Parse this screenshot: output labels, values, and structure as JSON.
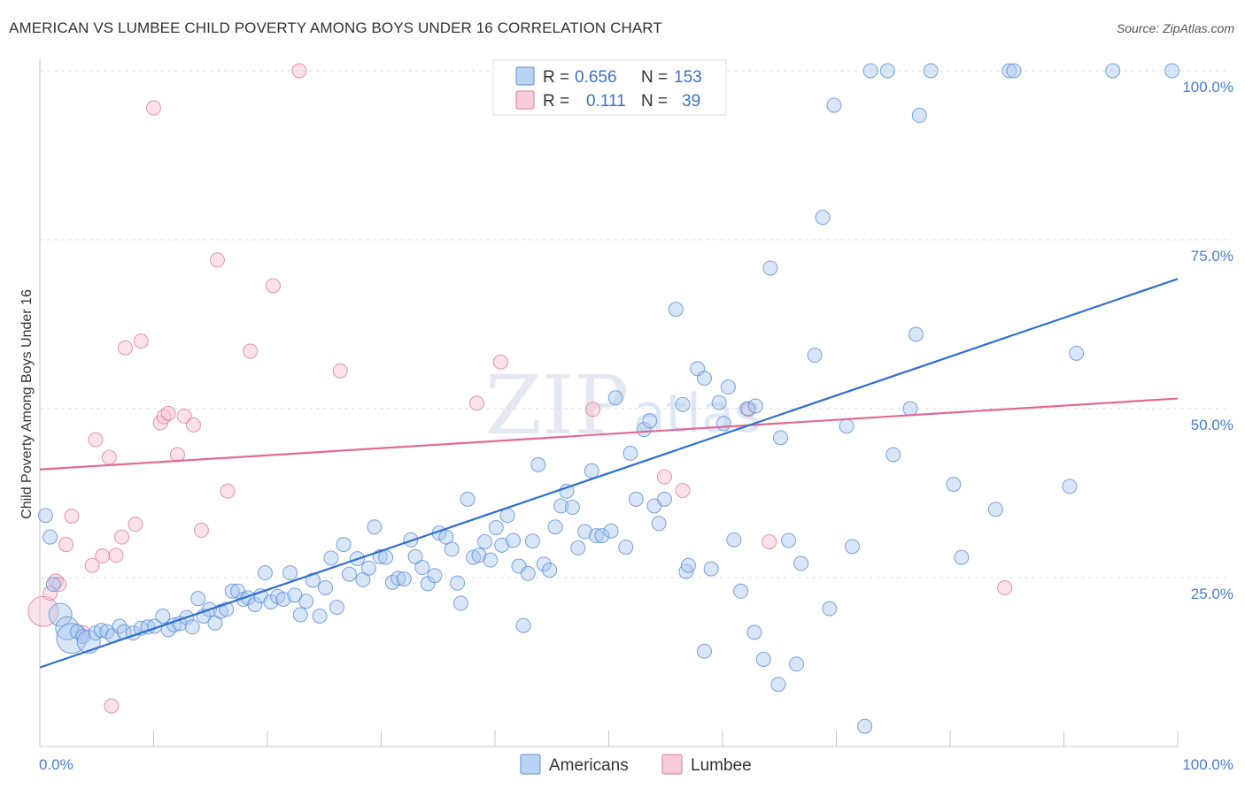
{
  "header": {
    "title": "AMERICAN VS LUMBEE CHILD POVERTY AMONG BOYS UNDER 16 CORRELATION CHART",
    "source": "Source: ZipAtlas.com"
  },
  "watermark": {
    "main": "ZIP",
    "sub": "atlas"
  },
  "legend_top": {
    "rows": [
      {
        "r_label": "R =",
        "r_value": "0.656",
        "n_label": "N =",
        "n_value": "153",
        "color": "#a9c8f0",
        "stroke": "#5b8fd8"
      },
      {
        "r_label": "R =",
        "r_value": "0.111",
        "n_label": "N =",
        "n_value": "39",
        "color": "#f7bfd0",
        "stroke": "#e07a9c"
      }
    ]
  },
  "legend_bottom": {
    "items": [
      {
        "label": "Americans",
        "color": "#a9c8f0",
        "stroke": "#5b8fd8"
      },
      {
        "label": "Lumbee",
        "color": "#f7bfd0",
        "stroke": "#e07a9c"
      }
    ]
  },
  "chart_data": {
    "type": "scatter",
    "title": "AMERICAN VS LUMBEE CHILD POVERTY AMONG BOYS UNDER 16 CORRELATION CHART",
    "xlabel": "",
    "ylabel": "Child Poverty Among Boys Under 16",
    "xlim": [
      0,
      100
    ],
    "ylim": [
      0,
      100
    ],
    "x_tick_labels": [
      "0.0%",
      "100.0%"
    ],
    "y_tick_labels": [
      "25.0%",
      "50.0%",
      "75.0%",
      "100.0%"
    ],
    "y_ticks": [
      25,
      50,
      75,
      100
    ],
    "grid": "horizontal dashed",
    "colors": {
      "americans": "#5b8fd8",
      "americans_fill": "#a9c8f0",
      "lumbee": "#e07a9c",
      "lumbee_fill": "#f7bfd0",
      "americans_line": "#2f6fcf",
      "lumbee_line": "#e06a95"
    },
    "series": [
      {
        "name": "Americans",
        "trend": {
          "x": [
            0,
            100
          ],
          "y": [
            11.7,
            69.2
          ]
        },
        "points": [
          [
            0.5,
            34.2,
            1
          ],
          [
            0.9,
            31.0,
            1
          ],
          [
            1.2,
            24.0,
            1
          ],
          [
            1.8,
            19.5,
            2
          ],
          [
            2.4,
            17.5,
            2
          ],
          [
            2.8,
            16.0,
            3
          ],
          [
            3.3,
            17.0,
            1
          ],
          [
            3.8,
            16.3,
            1
          ],
          [
            4.3,
            15.5,
            2
          ],
          [
            4.9,
            16.8,
            1
          ],
          [
            5.4,
            17.2,
            1
          ],
          [
            5.9,
            17.0,
            1
          ],
          [
            6.4,
            16.4,
            1
          ],
          [
            7.0,
            17.8,
            1
          ],
          [
            7.4,
            17.0,
            1
          ],
          [
            8.2,
            16.8,
            1
          ],
          [
            8.9,
            17.5,
            1
          ],
          [
            9.5,
            17.7,
            1
          ],
          [
            10.1,
            17.8,
            1
          ],
          [
            10.8,
            19.3,
            1
          ],
          [
            11.3,
            17.3,
            1
          ],
          [
            11.8,
            18.0,
            1
          ],
          [
            12.3,
            18.2,
            1
          ],
          [
            12.9,
            19.1,
            1
          ],
          [
            13.4,
            17.7,
            1
          ],
          [
            13.9,
            21.9,
            1
          ],
          [
            14.4,
            19.3,
            1
          ],
          [
            14.9,
            20.3,
            1
          ],
          [
            15.4,
            18.3,
            1
          ],
          [
            15.9,
            20.0,
            1
          ],
          [
            16.4,
            20.3,
            1
          ],
          [
            16.9,
            23.0,
            1
          ],
          [
            17.4,
            23.0,
            1
          ],
          [
            17.9,
            21.8,
            1
          ],
          [
            18.3,
            22.0,
            1
          ],
          [
            18.9,
            21.0,
            1
          ],
          [
            19.4,
            22.3,
            1
          ],
          [
            19.8,
            25.7,
            1
          ],
          [
            20.3,
            21.4,
            1
          ],
          [
            20.9,
            22.2,
            1
          ],
          [
            21.4,
            21.8,
            1
          ],
          [
            22.0,
            25.7,
            1
          ],
          [
            22.4,
            22.4,
            1
          ],
          [
            22.9,
            19.5,
            1
          ],
          [
            23.4,
            21.5,
            1
          ],
          [
            24.0,
            24.6,
            1
          ],
          [
            24.6,
            19.3,
            1
          ],
          [
            25.1,
            23.5,
            1
          ],
          [
            25.6,
            27.9,
            1
          ],
          [
            26.1,
            20.6,
            1
          ],
          [
            26.7,
            29.9,
            1
          ],
          [
            27.2,
            25.5,
            1
          ],
          [
            27.9,
            27.8,
            1
          ],
          [
            28.4,
            24.7,
            1
          ],
          [
            28.9,
            26.4,
            1
          ],
          [
            29.4,
            32.5,
            1
          ],
          [
            29.9,
            28.1,
            1
          ],
          [
            30.4,
            28.0,
            1
          ],
          [
            31.0,
            24.3,
            1
          ],
          [
            31.5,
            24.9,
            1
          ],
          [
            32.0,
            24.8,
            1
          ],
          [
            32.6,
            30.6,
            1
          ],
          [
            33.0,
            28.1,
            1
          ],
          [
            33.6,
            26.5,
            1
          ],
          [
            34.1,
            24.1,
            1
          ],
          [
            34.7,
            25.3,
            1
          ],
          [
            35.1,
            31.6,
            1
          ],
          [
            35.7,
            31.0,
            1
          ],
          [
            36.2,
            29.2,
            1
          ],
          [
            36.7,
            24.2,
            1
          ],
          [
            37.0,
            21.2,
            1
          ],
          [
            37.6,
            36.6,
            1
          ],
          [
            38.1,
            28.0,
            1
          ],
          [
            38.6,
            28.3,
            1
          ],
          [
            39.1,
            30.3,
            1
          ],
          [
            39.6,
            27.6,
            1
          ],
          [
            40.1,
            32.4,
            1
          ],
          [
            40.6,
            29.8,
            1
          ],
          [
            41.1,
            34.2,
            1
          ],
          [
            41.6,
            30.5,
            1
          ],
          [
            42.1,
            26.7,
            1
          ],
          [
            42.5,
            17.9,
            1
          ],
          [
            42.9,
            25.6,
            1
          ],
          [
            43.3,
            30.4,
            1
          ],
          [
            43.8,
            41.7,
            1
          ],
          [
            44.3,
            27.0,
            1
          ],
          [
            44.8,
            26.1,
            1
          ],
          [
            45.3,
            32.5,
            1
          ],
          [
            45.8,
            35.6,
            1
          ],
          [
            46.3,
            37.8,
            1
          ],
          [
            46.8,
            35.4,
            1
          ],
          [
            47.3,
            29.4,
            1
          ],
          [
            47.9,
            31.8,
            1
          ],
          [
            48.5,
            40.8,
            1
          ],
          [
            48.9,
            31.2,
            1
          ],
          [
            49.4,
            31.2,
            1
          ],
          [
            50.2,
            31.9,
            1
          ],
          [
            50.6,
            51.6,
            1
          ],
          [
            51.5,
            29.5,
            1
          ],
          [
            51.9,
            43.4,
            1
          ],
          [
            52.4,
            36.6,
            1
          ],
          [
            53.1,
            46.9,
            1
          ],
          [
            53.6,
            48.2,
            1
          ],
          [
            54.0,
            35.6,
            1
          ],
          [
            54.4,
            33.0,
            1
          ],
          [
            54.9,
            36.6,
            1
          ],
          [
            55.9,
            64.7,
            1
          ],
          [
            56.5,
            50.6,
            1
          ],
          [
            56.8,
            25.9,
            1
          ],
          [
            57.0,
            26.8,
            1
          ],
          [
            57.8,
            55.9,
            1
          ],
          [
            58.4,
            54.5,
            1
          ],
          [
            58.4,
            14.1,
            1
          ],
          [
            59.0,
            26.3,
            1
          ],
          [
            59.7,
            50.9,
            1
          ],
          [
            60.1,
            47.8,
            1
          ],
          [
            60.5,
            53.2,
            1
          ],
          [
            61.0,
            30.6,
            1
          ],
          [
            61.6,
            23.0,
            1
          ],
          [
            62.2,
            50.0,
            1
          ],
          [
            62.8,
            16.9,
            1
          ],
          [
            62.9,
            50.4,
            1
          ],
          [
            63.6,
            12.9,
            1
          ],
          [
            64.2,
            70.8,
            1
          ],
          [
            64.9,
            9.2,
            1
          ],
          [
            65.1,
            45.7,
            1
          ],
          [
            65.8,
            30.5,
            1
          ],
          [
            66.5,
            12.2,
            1
          ],
          [
            66.9,
            27.1,
            1
          ],
          [
            68.1,
            57.9,
            1
          ],
          [
            68.8,
            78.3,
            1
          ],
          [
            69.4,
            20.4,
            1
          ],
          [
            69.8,
            94.9,
            1
          ],
          [
            70.9,
            47.4,
            1
          ],
          [
            71.4,
            29.6,
            1
          ],
          [
            72.5,
            3.0,
            1
          ],
          [
            73.0,
            100.0,
            1
          ],
          [
            74.5,
            100.0,
            1
          ],
          [
            75.0,
            43.2,
            1
          ],
          [
            76.5,
            50.0,
            1
          ],
          [
            77.0,
            61.0,
            1
          ],
          [
            77.3,
            93.4,
            1
          ],
          [
            78.3,
            100.0,
            1
          ],
          [
            80.3,
            38.8,
            1
          ],
          [
            81.0,
            28.0,
            1
          ],
          [
            84.0,
            35.1,
            1
          ],
          [
            85.2,
            100.0,
            1
          ],
          [
            85.6,
            100.0,
            1
          ],
          [
            90.5,
            38.5,
            1
          ],
          [
            91.1,
            58.2,
            1
          ],
          [
            94.3,
            100.0,
            1
          ],
          [
            99.5,
            100.0,
            1
          ],
          [
            59.5,
            100.0,
            1
          ]
        ]
      },
      {
        "name": "Lumbee",
        "trend": {
          "x": [
            0,
            100
          ],
          "y": [
            41.0,
            51.5
          ]
        },
        "points": [
          [
            0.3,
            20.0,
            3
          ],
          [
            0.9,
            22.7,
            1
          ],
          [
            1.4,
            24.5,
            1
          ],
          [
            1.7,
            24.0,
            1
          ],
          [
            2.3,
            29.9,
            1
          ],
          [
            2.8,
            34.1,
            1
          ],
          [
            3.8,
            16.8,
            1
          ],
          [
            4.6,
            26.8,
            1
          ],
          [
            4.9,
            45.4,
            1
          ],
          [
            5.5,
            28.2,
            1
          ],
          [
            6.3,
            6.0,
            1
          ],
          [
            6.1,
            42.8,
            1
          ],
          [
            6.7,
            28.3,
            1
          ],
          [
            7.2,
            31.0,
            1
          ],
          [
            7.5,
            59.0,
            1
          ],
          [
            8.4,
            32.9,
            1
          ],
          [
            8.9,
            60.0,
            1
          ],
          [
            10.0,
            94.5,
            1
          ],
          [
            10.6,
            47.9,
            1
          ],
          [
            10.9,
            48.8,
            1
          ],
          [
            11.3,
            49.3,
            1
          ],
          [
            12.1,
            43.2,
            1
          ],
          [
            12.7,
            48.9,
            1
          ],
          [
            13.5,
            47.6,
            1
          ],
          [
            14.2,
            32.0,
            1
          ],
          [
            15.6,
            72.0,
            1
          ],
          [
            16.5,
            37.8,
            1
          ],
          [
            18.5,
            58.5,
            1
          ],
          [
            20.5,
            68.2,
            1
          ],
          [
            22.8,
            100.0,
            1
          ],
          [
            26.4,
            55.6,
            1
          ],
          [
            38.4,
            50.8,
            1
          ],
          [
            40.5,
            56.9,
            1
          ],
          [
            48.6,
            49.9,
            1
          ],
          [
            54.9,
            39.9,
            1
          ],
          [
            56.5,
            37.9,
            1
          ],
          [
            62.3,
            49.9,
            1
          ],
          [
            64.1,
            30.3,
            1
          ],
          [
            84.8,
            23.5,
            1
          ]
        ]
      }
    ]
  }
}
